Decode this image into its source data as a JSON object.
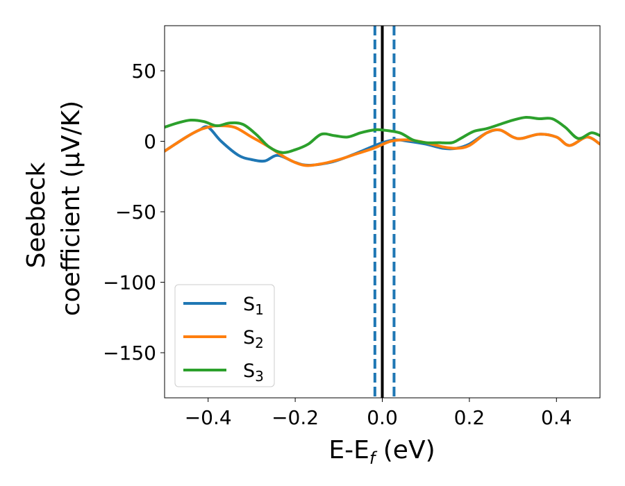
{
  "chart_data": {
    "type": "line",
    "xlabel": "E-E",
    "xlabel_sub": "f",
    "xlabel_unit": " (eV)",
    "ylabel_line1": "Seebeck",
    "ylabel_line2": "coefficient  (μV/K)",
    "xlim": [
      -0.5,
      0.5
    ],
    "ylim": [
      -182,
      82
    ],
    "xticks": [
      -0.4,
      -0.2,
      0.0,
      0.2,
      0.4
    ],
    "xtick_labels": [
      "−0.4",
      "−0.2",
      "0.0",
      "0.2",
      "0.4"
    ],
    "yticks": [
      50,
      0,
      -50,
      -100,
      -150
    ],
    "ytick_labels": [
      "50",
      "0",
      "−50",
      "−100",
      "−150"
    ],
    "grid": false,
    "legend_position": "lower-left",
    "vlines": [
      {
        "x": -0.017,
        "style": "dashed",
        "color": "#1f77b4"
      },
      {
        "x": 0.027,
        "style": "dashed",
        "color": "#1f77b4"
      },
      {
        "x": 0.0,
        "style": "solid",
        "color": "#000000"
      }
    ],
    "series": [
      {
        "name": "S",
        "subscript": "1",
        "color": "#1f77b4",
        "x": [
          -0.5,
          -0.45,
          -0.42,
          -0.4,
          -0.37,
          -0.33,
          -0.3,
          -0.27,
          -0.24,
          -0.2,
          -0.17,
          -0.12,
          -0.08,
          -0.04,
          0.0,
          0.03,
          0.06,
          0.1,
          0.14,
          0.17,
          0.2,
          0.24,
          0.27,
          0.3,
          0.32,
          0.36,
          0.4,
          0.43,
          0.47,
          0.5
        ],
        "y": [
          -7,
          3,
          8,
          10,
          0,
          -10,
          -13,
          -14,
          -10,
          -15,
          -17,
          -15,
          -11,
          -6,
          -1,
          1,
          0,
          -2,
          -5,
          -5,
          -2,
          6,
          8,
          3,
          2,
          5,
          3,
          -3,
          3,
          -2
        ]
      },
      {
        "name": "S",
        "subscript": "2",
        "color": "#ff7f0e",
        "x": [
          -0.5,
          -0.45,
          -0.42,
          -0.4,
          -0.38,
          -0.34,
          -0.3,
          -0.26,
          -0.22,
          -0.18,
          -0.14,
          -0.1,
          -0.06,
          -0.02,
          0.02,
          0.06,
          0.1,
          0.14,
          0.17,
          0.2,
          0.24,
          0.27,
          0.3,
          0.32,
          0.36,
          0.4,
          0.43,
          0.47,
          0.5
        ],
        "y": [
          -7,
          3,
          8,
          10,
          11,
          10,
          3,
          -4,
          -12,
          -17,
          -16,
          -13,
          -9,
          -5,
          0,
          1,
          -1,
          -4,
          -5,
          -3,
          6,
          8,
          3,
          2,
          5,
          3,
          -3,
          3,
          -2
        ]
      },
      {
        "name": "S",
        "subscript": "3",
        "color": "#2ca02c",
        "x": [
          -0.5,
          -0.47,
          -0.44,
          -0.41,
          -0.38,
          -0.35,
          -0.32,
          -0.29,
          -0.26,
          -0.23,
          -0.2,
          -0.17,
          -0.14,
          -0.11,
          -0.08,
          -0.05,
          -0.02,
          0.0,
          0.04,
          0.07,
          0.1,
          0.13,
          0.16,
          0.18,
          0.21,
          0.24,
          0.27,
          0.3,
          0.33,
          0.36,
          0.39,
          0.42,
          0.45,
          0.48,
          0.5
        ],
        "y": [
          10,
          13,
          15,
          14,
          11,
          13,
          12,
          5,
          -4,
          -8,
          -6,
          -2,
          5,
          4,
          3,
          6,
          8,
          8,
          6,
          1,
          -1,
          -1,
          -1,
          2,
          7,
          9,
          12,
          15,
          17,
          16,
          16,
          10,
          2,
          6,
          4
        ]
      }
    ]
  }
}
